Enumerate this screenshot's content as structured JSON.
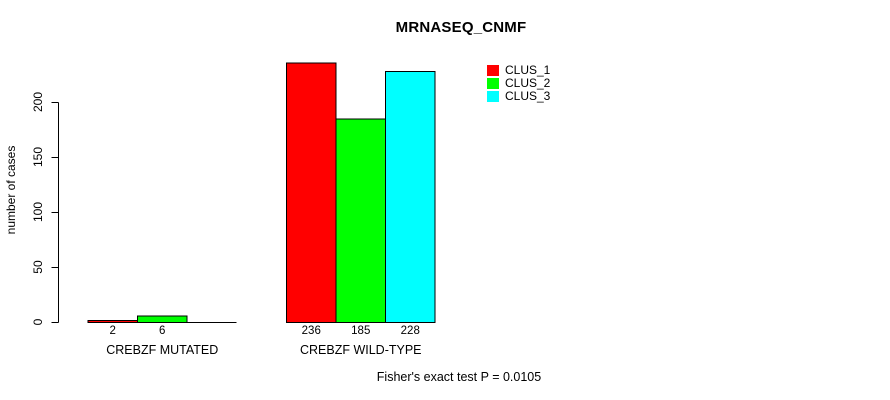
{
  "title": "MRNASEQ_CNMF",
  "chart_data": {
    "type": "bar",
    "title": "MRNASEQ_CNMF",
    "xlabel": "",
    "ylabel": "number of cases",
    "categories": [
      "CREBZF MUTATED",
      "CREBZF WILD-TYPE"
    ],
    "series": [
      {
        "name": "CLUS_1",
        "color": "#ff0000",
        "values": [
          2,
          236
        ]
      },
      {
        "name": "CLUS_2",
        "color": "#00ff00",
        "values": [
          6,
          185
        ]
      },
      {
        "name": "CLUS_3",
        "color": "#00ffff",
        "values": [
          0,
          228
        ]
      }
    ],
    "bar_value_labels": [
      [
        "2",
        "6",
        ""
      ],
      [
        "236",
        "185",
        "228"
      ]
    ],
    "yticks": [
      0,
      50,
      100,
      150,
      200
    ],
    "ylim": [
      0,
      236
    ],
    "grid": false,
    "legend_position": "top-right",
    "legend_border": false,
    "annotation": "Fisher's exact test P = 0.0105",
    "axis_color": "#000000",
    "background_color": "#ffffff"
  }
}
